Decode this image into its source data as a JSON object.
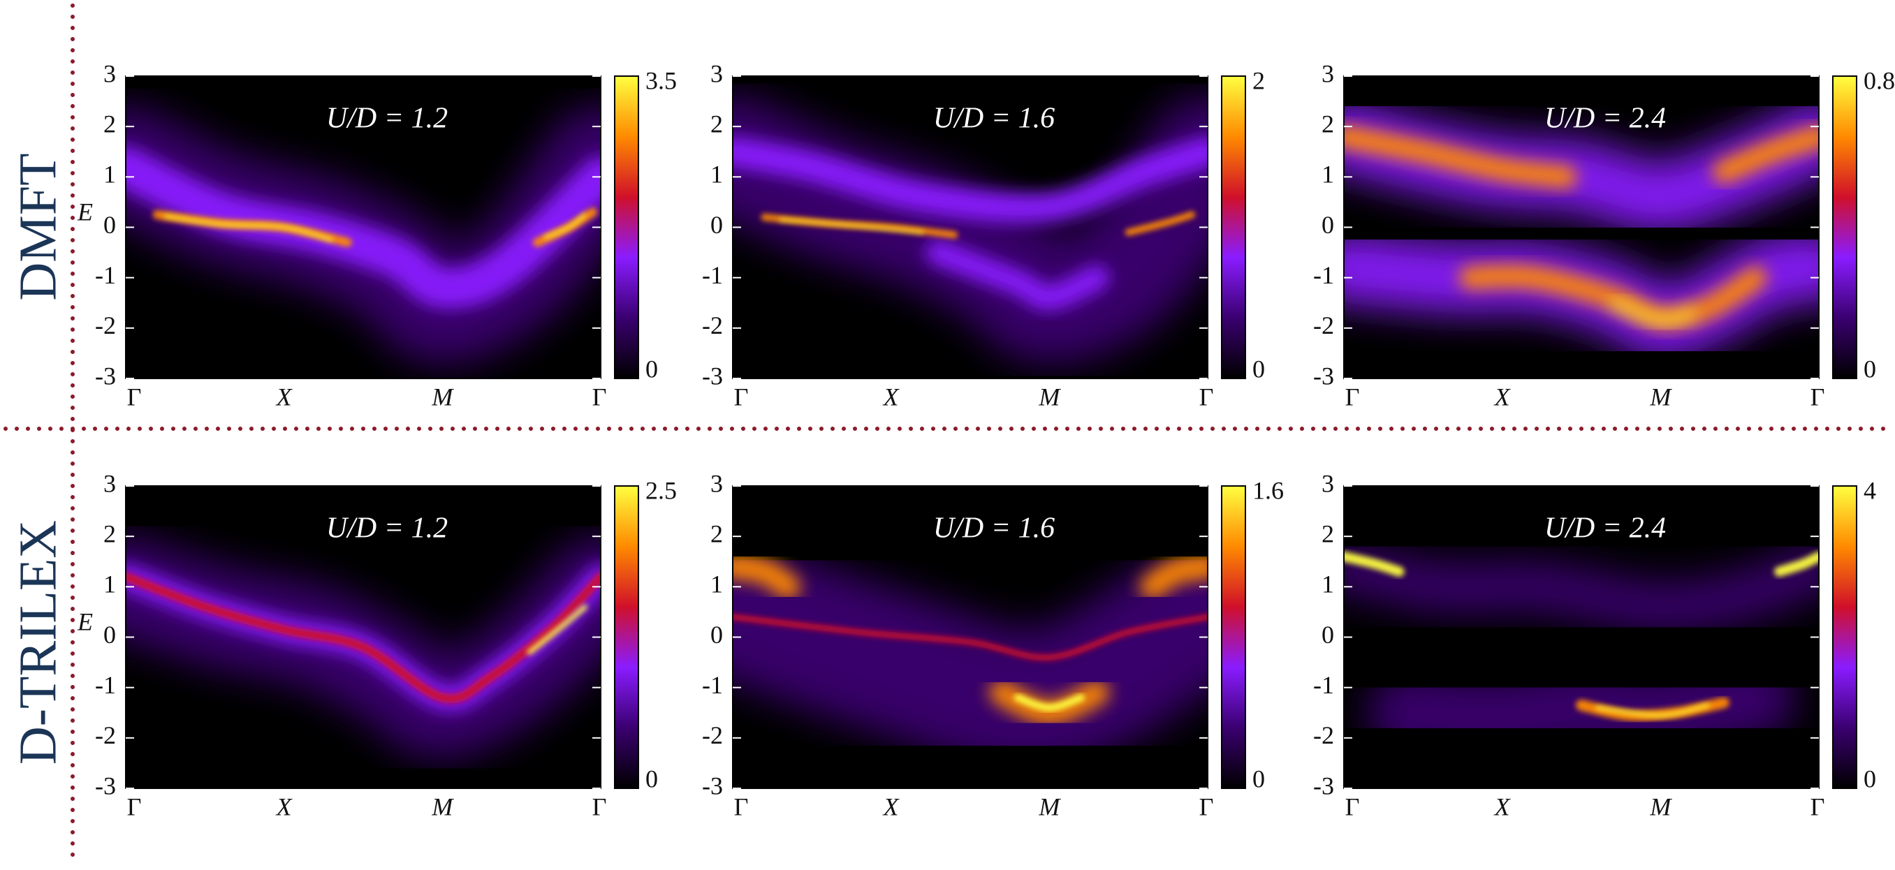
{
  "row_labels": [
    "DMFT",
    "D-TRILEX"
  ],
  "chart_data": [
    {
      "type": "heatmap",
      "title": "U/D = 1.2",
      "ylabel": "E",
      "categories": [
        "Γ",
        "X",
        "M",
        "Γ"
      ],
      "ylim": [
        -3,
        3
      ],
      "yticks": [
        3,
        2,
        1,
        0,
        -1,
        -2,
        -3
      ],
      "zlim": [
        0,
        3.5
      ],
      "zticks": [
        0,
        3.5
      ],
      "colormap": [
        "#000000",
        "#3a0070",
        "#8a1cff",
        "#d0102a",
        "#ff8a00",
        "#ffff40"
      ]
    },
    {
      "type": "heatmap",
      "title": "U/D = 1.6",
      "categories": [
        "Γ",
        "X",
        "M",
        "Γ"
      ],
      "ylim": [
        -3,
        3
      ],
      "yticks": [
        3,
        2,
        1,
        0,
        -1,
        -2,
        -3
      ],
      "zlim": [
        0,
        2
      ],
      "zticks": [
        0,
        2
      ],
      "colormap": [
        "#000000",
        "#3a0070",
        "#8a1cff",
        "#d0102a",
        "#ff8a00",
        "#ffff40"
      ]
    },
    {
      "type": "heatmap",
      "title": "U/D = 2.4",
      "categories": [
        "Γ",
        "X",
        "M",
        "Γ"
      ],
      "ylim": [
        -3,
        3
      ],
      "yticks": [
        3,
        2,
        1,
        0,
        -1,
        -2,
        -3
      ],
      "zlim": [
        0,
        0.8
      ],
      "zticks": [
        0,
        0.8
      ],
      "colormap": [
        "#000000",
        "#3a0070",
        "#8a1cff",
        "#d0102a",
        "#ff8a00",
        "#ffff40"
      ]
    },
    {
      "type": "heatmap",
      "title": "U/D = 1.2",
      "ylabel": "E",
      "categories": [
        "Γ",
        "X",
        "M",
        "Γ"
      ],
      "ylim": [
        -3,
        3
      ],
      "yticks": [
        3,
        2,
        1,
        0,
        -1,
        -2,
        -3
      ],
      "zlim": [
        0,
        2.5
      ],
      "zticks": [
        0,
        2.5
      ],
      "colormap": [
        "#000000",
        "#3a0070",
        "#8a1cff",
        "#d0102a",
        "#ff8a00",
        "#ffff40"
      ]
    },
    {
      "type": "heatmap",
      "title": "U/D = 1.6",
      "categories": [
        "Γ",
        "X",
        "M",
        "Γ"
      ],
      "ylim": [
        -3,
        3
      ],
      "yticks": [
        3,
        2,
        1,
        0,
        -1,
        -2,
        -3
      ],
      "zlim": [
        0,
        1.6
      ],
      "zticks": [
        0,
        1.6
      ],
      "colormap": [
        "#000000",
        "#3a0070",
        "#8a1cff",
        "#d0102a",
        "#ff8a00",
        "#ffff40"
      ]
    },
    {
      "type": "heatmap",
      "title": "U/D = 2.4",
      "categories": [
        "Γ",
        "X",
        "M",
        "Γ"
      ],
      "ylim": [
        -3,
        3
      ],
      "yticks": [
        3,
        2,
        1,
        0,
        -1,
        -2,
        -3
      ],
      "zlim": [
        0,
        4
      ],
      "zticks": [
        0,
        4
      ],
      "colormap": [
        "#000000",
        "#3a0070",
        "#8a1cff",
        "#d0102a",
        "#ff8a00",
        "#ffff40"
      ]
    }
  ]
}
